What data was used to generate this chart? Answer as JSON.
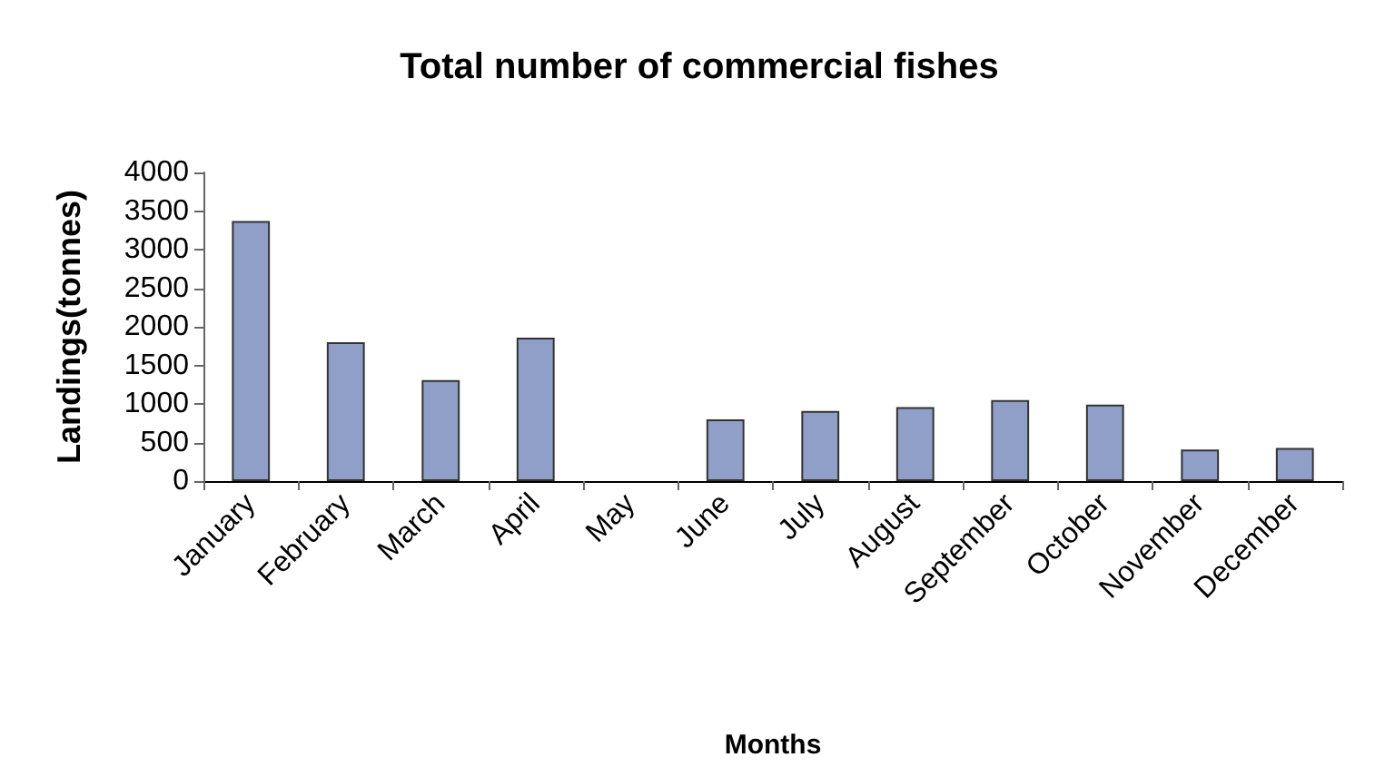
{
  "chart_data": {
    "type": "bar",
    "title": "Total number of commercial fishes",
    "xlabel": "Months",
    "ylabel": "Landings(tonnes)",
    "categories": [
      "January",
      "February",
      "March",
      "April",
      "May",
      "June",
      "July",
      "August",
      "September",
      "October",
      "November",
      "December"
    ],
    "values": [
      3370,
      1800,
      1310,
      1860,
      0,
      800,
      910,
      960,
      1050,
      990,
      410,
      430
    ],
    "color": "#8f9fc8",
    "ylim": [
      0,
      4000
    ],
    "yticks": [
      0,
      500,
      1000,
      1500,
      2000,
      2500,
      3000,
      3500,
      4000
    ],
    "grid": false
  }
}
